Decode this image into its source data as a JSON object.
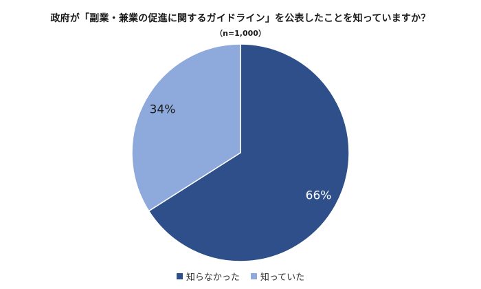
{
  "chart_data": {
    "type": "pie",
    "title": "政府が「副業・兼業の促進に関するガイドライン」を公表したことを知っていますか？",
    "subtitle": "（n=1,000）",
    "categories": [
      "知らなかった",
      "知っていた"
    ],
    "values": [
      66,
      34
    ],
    "labels": [
      "66%",
      "34%"
    ],
    "colors": [
      "#2e4f8a",
      "#8eaadc"
    ],
    "start": "12 o'clock",
    "direction": "clockwise",
    "legend_position": "bottom"
  }
}
